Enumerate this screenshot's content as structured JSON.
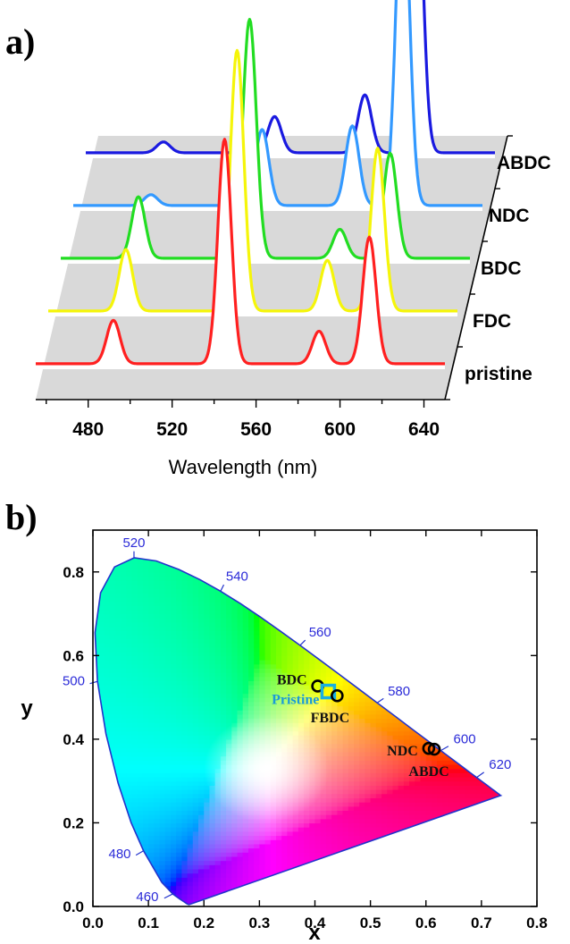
{
  "panels": {
    "a": "a)",
    "b": "b)"
  },
  "chart_data": [
    {
      "type": "line",
      "subtype": "waterfall (stacked 3D)",
      "xlabel": "Wavelength (nm)",
      "x_ticks": [
        480,
        520,
        560,
        600,
        640
      ],
      "xlim": [
        455,
        650
      ],
      "ylabel": "",
      "grid": false,
      "series": [
        {
          "name": "pristine",
          "color": "#ff2020",
          "peaks": [
            {
              "x": 492,
              "height": 0.12
            },
            {
              "x": 545,
              "height": 0.62
            },
            {
              "x": 590,
              "height": 0.09
            },
            {
              "x": 614,
              "height": 0.35
            }
          ]
        },
        {
          "name": "FDC",
          "color": "#f5f50a",
          "peaks": [
            {
              "x": 492,
              "height": 0.17
            },
            {
              "x": 545,
              "height": 0.72
            },
            {
              "x": 588,
              "height": 0.14
            },
            {
              "x": 612,
              "height": 0.45
            }
          ]
        },
        {
          "name": "BDC",
          "color": "#22dd22",
          "peaks": [
            {
              "x": 492,
              "height": 0.17
            },
            {
              "x": 545,
              "height": 0.66
            },
            {
              "x": 588,
              "height": 0.08
            },
            {
              "x": 612,
              "height": 0.29
            }
          ]
        },
        {
          "name": "NDC",
          "color": "#3399ff",
          "peaks": [
            {
              "x": 492,
              "height": 0.03
            },
            {
              "x": 545,
              "height": 0.21
            },
            {
              "x": 588,
              "height": 0.22
            },
            {
              "x": 612,
              "height": 0.92
            }
          ]
        },
        {
          "name": "ABDC",
          "color": "#1a1ae0",
          "peaks": [
            {
              "x": 492,
              "height": 0.03
            },
            {
              "x": 545,
              "height": 0.1
            },
            {
              "x": 588,
              "height": 0.16
            },
            {
              "x": 612,
              "height": 0.98
            }
          ]
        }
      ]
    },
    {
      "type": "scatter",
      "subtype": "CIE 1931 chromaticity diagram",
      "xlabel": "x",
      "ylabel": "y",
      "xlim": [
        0.0,
        0.8
      ],
      "ylim": [
        0.0,
        0.9
      ],
      "x_ticks": [
        "0.0",
        "0.1",
        "0.2",
        "0.3",
        "0.4",
        "0.5",
        "0.6",
        "0.7",
        "0.8"
      ],
      "y_ticks": [
        "0.0",
        "0.2",
        "0.4",
        "0.6",
        "0.8"
      ],
      "grid": false,
      "locus_wavelength_labels": [
        {
          "nm": "460",
          "x": 0.144,
          "y": 0.03
        },
        {
          "nm": "480",
          "x": 0.091,
          "y": 0.133
        },
        {
          "nm": "500",
          "x": 0.008,
          "y": 0.538
        },
        {
          "nm": "520",
          "x": 0.074,
          "y": 0.834
        },
        {
          "nm": "540",
          "x": 0.23,
          "y": 0.754
        },
        {
          "nm": "560",
          "x": 0.373,
          "y": 0.624
        },
        {
          "nm": "580",
          "x": 0.512,
          "y": 0.487
        },
        {
          "nm": "600",
          "x": 0.627,
          "y": 0.373
        },
        {
          "nm": "620",
          "x": 0.691,
          "y": 0.308
        }
      ],
      "points": [
        {
          "name": "BDC",
          "x": 0.405,
          "y": 0.527,
          "marker": "circle",
          "color": "#000000"
        },
        {
          "name": "Pristine",
          "x": 0.424,
          "y": 0.514,
          "marker": "square",
          "color": "#1ab0e0"
        },
        {
          "name": "FBDC",
          "x": 0.44,
          "y": 0.504,
          "marker": "circle",
          "color": "#000000"
        },
        {
          "name": "NDC",
          "x": 0.605,
          "y": 0.378,
          "marker": "circle",
          "color": "#000000"
        },
        {
          "name": "ABDC",
          "x": 0.615,
          "y": 0.376,
          "marker": "circle",
          "color": "#000000"
        }
      ]
    }
  ]
}
